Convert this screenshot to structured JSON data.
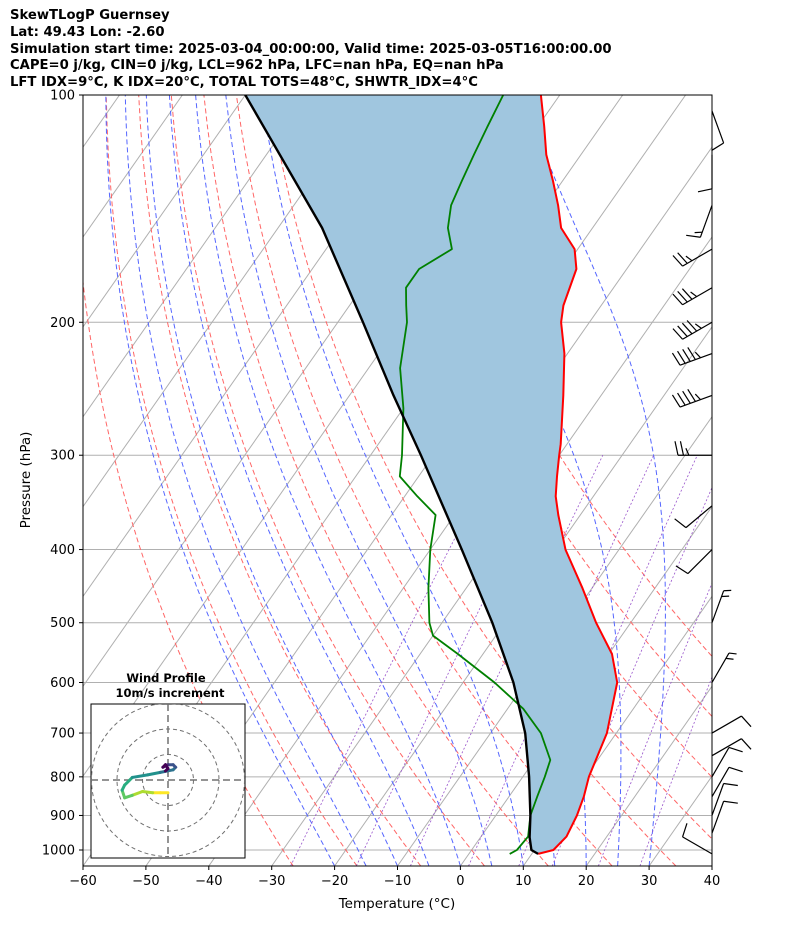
{
  "header": {
    "title": "SkewTLogP Guernsey",
    "location": "Lat: 49.43   Lon: -2.60",
    "times": "Simulation start time: 2025-03-04_00:00:00, Valid time: 2025-03-05T16:00:00.00",
    "params": "CAPE=0 j/kg, CIN=0 j/kg, LCL=962 hPa, LFC=nan hPa, EQ=nan hPa",
    "indices": "LFT IDX=9°C, K IDX=20°C, TOTAL TOTS=48°C, SHWTR_IDX=4°C"
  },
  "chart_data": {
    "type": "line",
    "subtype": "skew-t log-p",
    "xlabel": "Temperature (°C)",
    "ylabel": "Pressure (hPa)",
    "xlim": [
      -60,
      40
    ],
    "ylim": [
      1050,
      100
    ],
    "x_ticks": [
      -60,
      -50,
      -40,
      -30,
      -20,
      -10,
      0,
      10,
      20,
      30,
      40
    ],
    "x_tick_labels": [
      "−60",
      "−50",
      "−40",
      "−30",
      "−20",
      "−10",
      "0",
      "10",
      "20",
      "30",
      "40"
    ],
    "y_ticks": [
      1000,
      900,
      800,
      700,
      600,
      500,
      400,
      300,
      200,
      100
    ],
    "y_tick_labels": [
      "1000",
      "900",
      "800",
      "700",
      "600",
      "500",
      "400",
      "300",
      "200",
      "100"
    ],
    "series": [
      {
        "name": "temperature",
        "color": "#ff0000",
        "p": [
          1012,
          1000,
          960,
          900,
          850,
          800,
          700,
          600,
          550,
          500,
          450,
          400,
          360,
          340,
          320,
          300,
          290,
          250,
          220,
          200,
          190,
          170,
          160,
          150,
          140,
          130,
          120,
          110,
          100
        ],
        "t": [
          11.0,
          13.0,
          13.6,
          12.9,
          11.9,
          10.5,
          8.5,
          4.5,
          0.5,
          -5.5,
          -11.5,
          -18.5,
          -23.5,
          -26.0,
          -28.0,
          -30.0,
          -31.0,
          -36.0,
          -40.5,
          -44.5,
          -46.0,
          -48.0,
          -50.5,
          -55.0,
          -58.0,
          -61.5,
          -65.5,
          -69.0,
          -73.0
        ]
      },
      {
        "name": "dewpoint",
        "color": "#008000",
        "p": [
          1012,
          1000,
          960,
          900,
          850,
          800,
          760,
          700,
          650,
          600,
          550,
          520,
          500,
          450,
          400,
          360,
          340,
          320,
          300,
          260,
          230,
          200,
          190,
          180,
          170,
          160,
          150,
          140,
          130,
          120,
          110,
          100
        ],
        "t": [
          6.5,
          7.2,
          7.5,
          5.5,
          4.5,
          3.5,
          2.5,
          -2.0,
          -7.5,
          -15.0,
          -24.0,
          -30.0,
          -32.0,
          -36.0,
          -40.0,
          -43.0,
          -48.0,
          -53.0,
          -55.0,
          -60.0,
          -65.0,
          -69.0,
          -71.0,
          -73.0,
          -73.0,
          -70.0,
          -73.0,
          -75.0,
          -76.0,
          -77.0,
          -78.0,
          -79.0
        ]
      },
      {
        "name": "parcel",
        "color": "#000000",
        "p": [
          1012,
          1000,
          962,
          900,
          800,
          700,
          600,
          500,
          400,
          300,
          250,
          200,
          150,
          100
        ],
        "t": [
          11.0,
          9.5,
          7.8,
          5.5,
          1.0,
          -4.5,
          -12.0,
          -22.0,
          -35.0,
          -52.0,
          -63.0,
          -76.0,
          -93.0,
          -120.0
        ]
      }
    ],
    "shading": {
      "between": [
        "temperature",
        "parcel"
      ],
      "color": "#a0c6df"
    },
    "isotherms_step": 10,
    "dry_adiabats_theta_c": [
      -30,
      -20,
      -10,
      0,
      10,
      20,
      30,
      40,
      50,
      60,
      70
    ],
    "moist_adiabats_tstart_c": [
      -20,
      -15,
      -10,
      -5,
      0,
      5,
      10,
      15,
      20,
      25,
      30
    ],
    "mixing_ratio_lines_gkg": [
      0.4,
      1,
      2,
      4,
      7,
      10,
      16,
      24
    ],
    "wind_barbs": [
      {
        "p": 1012,
        "speed_kt": 10,
        "dir": 300
      },
      {
        "p": 950,
        "speed_kt": 10,
        "dir": 20
      },
      {
        "p": 900,
        "speed_kt": 10,
        "dir": 20
      },
      {
        "p": 850,
        "speed_kt": 10,
        "dir": 30
      },
      {
        "p": 800,
        "speed_kt": 10,
        "dir": 30
      },
      {
        "p": 750,
        "speed_kt": 10,
        "dir": 60
      },
      {
        "p": 700,
        "speed_kt": 10,
        "dir": 60
      },
      {
        "p": 600,
        "speed_kt": 5,
        "dir": 30
      },
      {
        "p": 500,
        "speed_kt": 5,
        "dir": 20
      },
      {
        "p": 400,
        "speed_kt": 10,
        "dir": 225
      },
      {
        "p": 350,
        "speed_kt": 10,
        "dir": 230
      },
      {
        "p": 300,
        "speed_kt": 25,
        "dir": 270
      },
      {
        "p": 250,
        "speed_kt": 45,
        "dir": 250
      },
      {
        "p": 220,
        "speed_kt": 45,
        "dir": 250
      },
      {
        "p": 200,
        "speed_kt": 45,
        "dir": 240
      },
      {
        "p": 180,
        "speed_kt": 35,
        "dir": 240
      },
      {
        "p": 160,
        "speed_kt": 25,
        "dir": 240
      },
      {
        "p": 140,
        "speed_kt": 15,
        "dir": 200
      },
      {
        "p": 120,
        "speed_kt": 10,
        "dir": 180
      },
      {
        "p": 105,
        "speed_kt": 10,
        "dir": 160
      }
    ]
  },
  "hodograph": {
    "title": "Wind Profile",
    "subtitle": "10m/s increment",
    "ring_step_ms": 10,
    "u": [
      0,
      -3,
      -6,
      -10,
      -14,
      -17,
      -18,
      -17,
      -14,
      -8,
      -3,
      2,
      3,
      2,
      0,
      -1,
      -2,
      -1,
      0,
      -1
    ],
    "v": [
      -5,
      -5,
      -5,
      -4.5,
      -6,
      -7,
      -4,
      -2,
      1,
      2,
      3,
      4,
      5,
      6,
      6,
      5.5,
      5,
      6,
      4.5,
      3.5
    ]
  }
}
